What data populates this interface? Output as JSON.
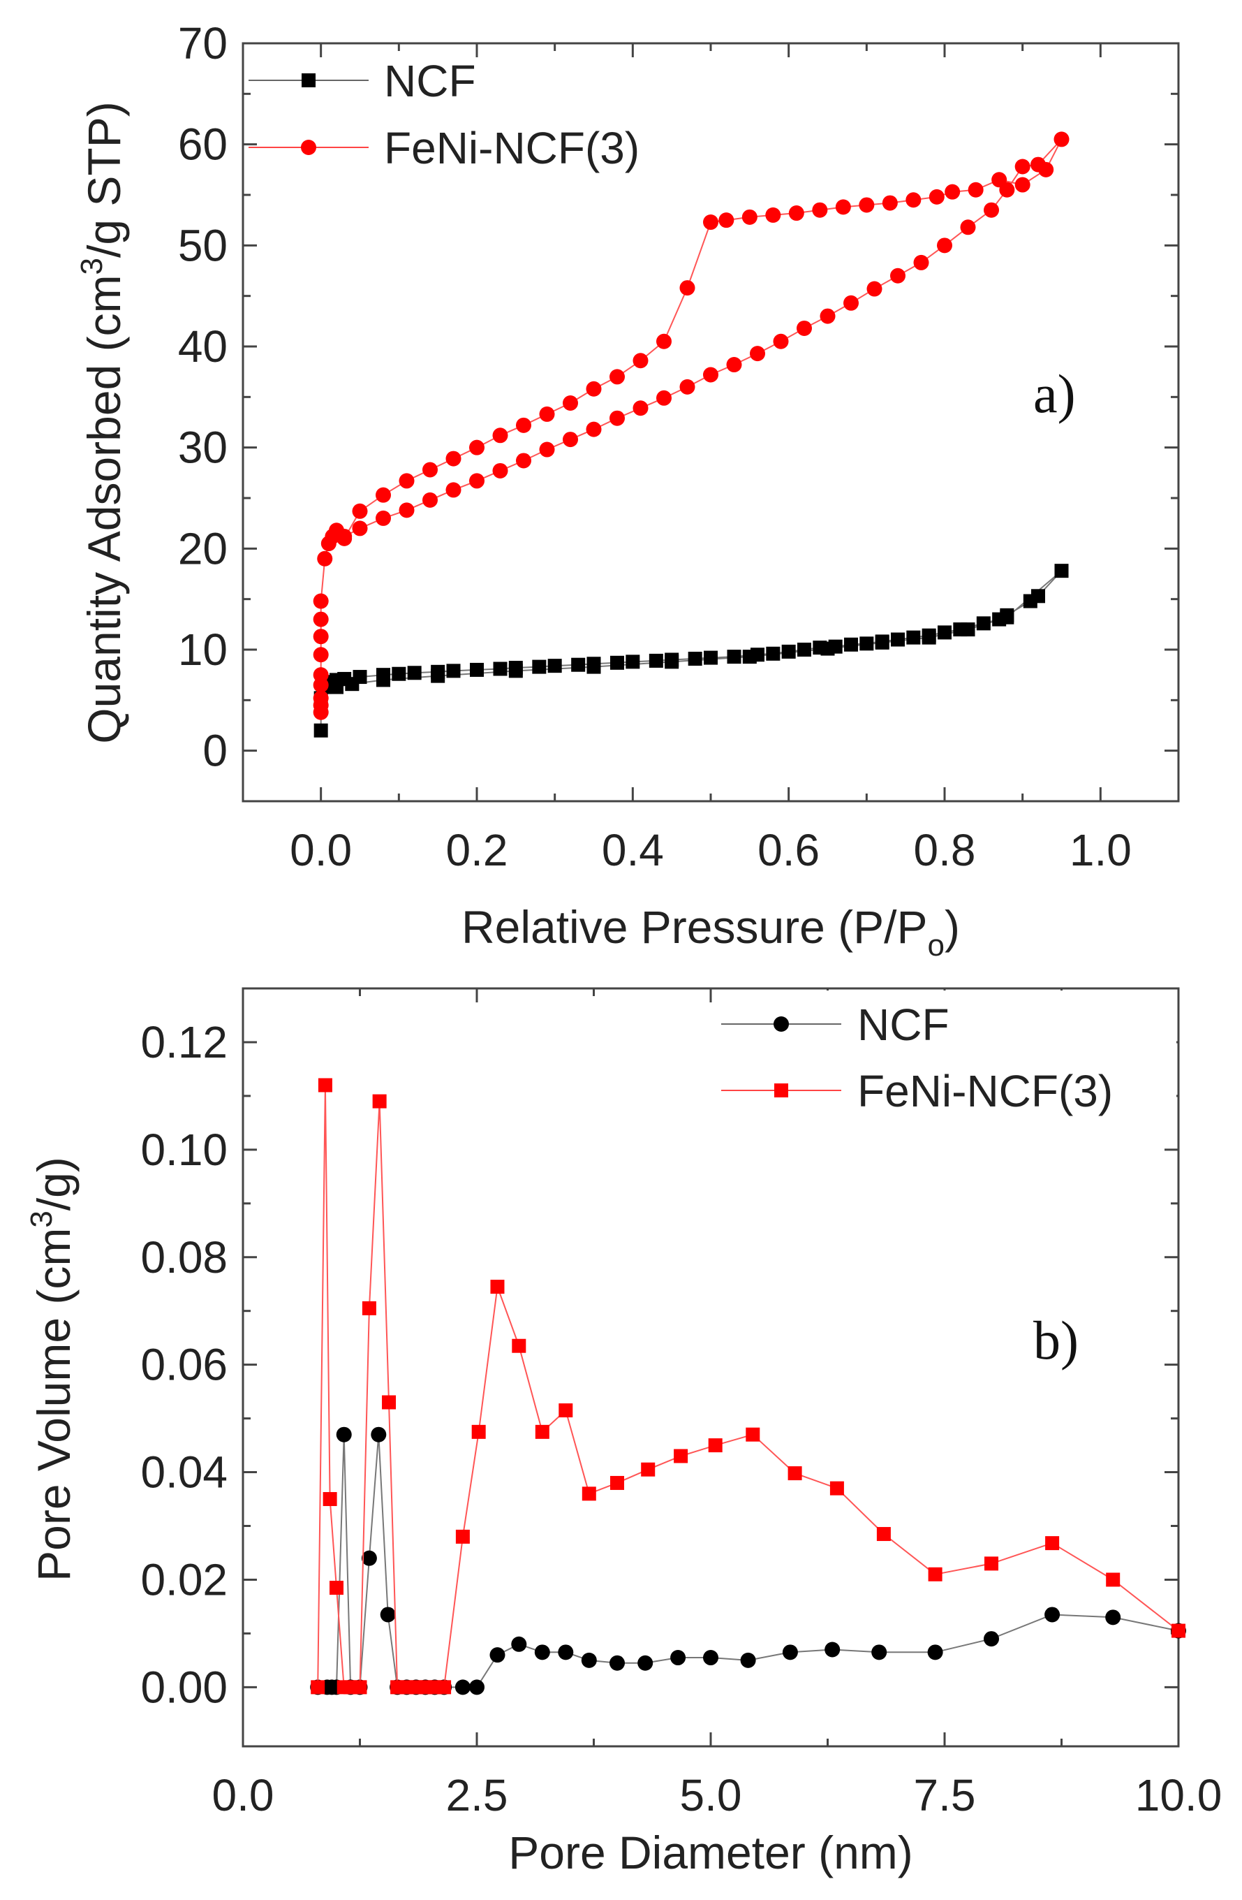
{
  "chart_data": [
    {
      "type": "scatter",
      "panel_label": "a)",
      "xlabel_main": "Relative Pressure (P/P",
      "xlabel_sub": "o",
      "xlabel_end": ")",
      "ylabel_main": "Quantity Adsorbed (cm",
      "ylabel_sup": "3",
      "ylabel_end": "/g STP)",
      "xlim": [
        -0.1,
        1.1
      ],
      "ylim": [
        -5,
        70
      ],
      "xticks": [
        {
          "value": 0.0,
          "label": "0.0"
        },
        {
          "value": 0.2,
          "label": "0.2"
        },
        {
          "value": 0.4,
          "label": "0.4"
        },
        {
          "value": 0.6,
          "label": "0.6"
        },
        {
          "value": 0.8,
          "label": "0.8"
        },
        {
          "value": 1.0,
          "label": "1.0"
        }
      ],
      "yticks": [
        {
          "value": 0,
          "label": "0"
        },
        {
          "value": 10,
          "label": "10"
        },
        {
          "value": 20,
          "label": "20"
        },
        {
          "value": 30,
          "label": "30"
        },
        {
          "value": 40,
          "label": "40"
        },
        {
          "value": 50,
          "label": "50"
        },
        {
          "value": 60,
          "label": "60"
        },
        {
          "value": 70,
          "label": "70"
        }
      ],
      "legend_position": "top-left",
      "series": [
        {
          "name": "NCF",
          "color": "#000000",
          "marker": "square",
          "x": [
            0.0,
            0.0,
            0.005,
            0.01,
            0.02,
            0.03,
            0.05,
            0.08,
            0.1,
            0.12,
            0.15,
            0.17,
            0.2,
            0.23,
            0.25,
            0.28,
            0.3,
            0.33,
            0.35,
            0.38,
            0.4,
            0.43,
            0.45,
            0.48,
            0.5,
            0.53,
            0.56,
            0.58,
            0.6,
            0.62,
            0.64,
            0.66,
            0.68,
            0.7,
            0.72,
            0.74,
            0.76,
            0.78,
            0.8,
            0.82,
            0.85,
            0.87,
            0.88,
            0.91,
            0.92,
            0.95,
            0.88,
            0.83,
            0.78,
            0.72,
            0.65,
            0.55,
            0.45,
            0.35,
            0.25,
            0.15,
            0.08,
            0.04,
            0.02
          ],
          "y": [
            2.0,
            5.2,
            6.3,
            6.8,
            7.0,
            7.1,
            7.3,
            7.5,
            7.6,
            7.7,
            7.8,
            7.9,
            8.0,
            8.1,
            8.2,
            8.3,
            8.4,
            8.5,
            8.6,
            8.7,
            8.8,
            8.9,
            9.0,
            9.1,
            9.2,
            9.3,
            9.5,
            9.6,
            9.8,
            10.0,
            10.2,
            10.3,
            10.5,
            10.6,
            10.8,
            11.0,
            11.2,
            11.4,
            11.7,
            12.0,
            12.6,
            13.0,
            13.4,
            14.8,
            15.3,
            17.8,
            13.2,
            12.0,
            11.2,
            10.7,
            10.1,
            9.3,
            8.8,
            8.3,
            7.9,
            7.4,
            7.0,
            6.6,
            6.3
          ]
        },
        {
          "name": "FeNi-NCF(3)",
          "color": "#ff0000",
          "marker": "circle",
          "x": [
            0.0,
            0.0,
            0.0,
            0.0,
            0.0,
            0.0,
            0.0,
            0.0,
            0.0,
            0.005,
            0.01,
            0.015,
            0.02,
            0.03,
            0.05,
            0.08,
            0.11,
            0.14,
            0.17,
            0.2,
            0.23,
            0.26,
            0.29,
            0.32,
            0.35,
            0.38,
            0.41,
            0.44,
            0.47,
            0.5,
            0.53,
            0.56,
            0.59,
            0.62,
            0.65,
            0.68,
            0.71,
            0.74,
            0.77,
            0.8,
            0.83,
            0.86,
            0.88,
            0.9,
            0.92,
            0.95,
            0.93,
            0.9,
            0.87,
            0.84,
            0.81,
            0.79,
            0.76,
            0.73,
            0.7,
            0.67,
            0.64,
            0.61,
            0.58,
            0.55,
            0.52,
            0.5,
            0.47,
            0.44,
            0.41,
            0.38,
            0.35,
            0.32,
            0.29,
            0.26,
            0.23,
            0.2,
            0.17,
            0.14,
            0.11,
            0.08,
            0.05,
            0.03
          ],
          "y": [
            3.8,
            4.5,
            5.2,
            6.5,
            7.5,
            9.5,
            11.3,
            13.0,
            14.8,
            19.0,
            20.5,
            21.2,
            21.8,
            21.2,
            22.0,
            23.0,
            23.8,
            24.8,
            25.8,
            26.7,
            27.7,
            28.7,
            29.8,
            30.8,
            31.8,
            32.9,
            33.9,
            34.9,
            36.0,
            37.2,
            38.2,
            39.3,
            40.5,
            41.8,
            43.0,
            44.3,
            45.7,
            47.0,
            48.3,
            50.0,
            51.8,
            53.5,
            55.5,
            57.8,
            58.0,
            60.5,
            57.5,
            56.0,
            56.5,
            55.5,
            55.3,
            54.8,
            54.5,
            54.2,
            54.0,
            53.8,
            53.5,
            53.2,
            53.0,
            52.8,
            52.5,
            52.3,
            45.8,
            40.5,
            38.6,
            37.0,
            35.8,
            34.4,
            33.3,
            32.2,
            31.2,
            30.0,
            28.9,
            27.8,
            26.7,
            25.3,
            23.7,
            21.0
          ]
        }
      ]
    },
    {
      "type": "line",
      "panel_label": "b)",
      "xlabel": "Pore Diameter (nm)",
      "ylabel_main": "Pore Volume (cm",
      "ylabel_sup": "3",
      "ylabel_end": "/g)",
      "xlim": [
        0.0,
        10.0
      ],
      "ylim": [
        -0.011,
        0.13
      ],
      "xticks": [
        {
          "value": 0.0,
          "label": "0.0"
        },
        {
          "value": 2.5,
          "label": "2.5"
        },
        {
          "value": 5.0,
          "label": "5.0"
        },
        {
          "value": 7.5,
          "label": "7.5"
        },
        {
          "value": 10.0,
          "label": "10.0"
        }
      ],
      "yticks": [
        {
          "value": 0.0,
          "label": "0.00"
        },
        {
          "value": 0.02,
          "label": "0.02"
        },
        {
          "value": 0.04,
          "label": "0.04"
        },
        {
          "value": 0.06,
          "label": "0.06"
        },
        {
          "value": 0.08,
          "label": "0.08"
        },
        {
          "value": 0.1,
          "label": "0.10"
        },
        {
          "value": 0.12,
          "label": "0.12"
        }
      ],
      "legend_position": "top-right",
      "series": [
        {
          "name": "NCF",
          "color": "#000000",
          "marker": "circle",
          "x": [
            0.8,
            0.9,
            0.95,
            1.0,
            1.08,
            1.15,
            1.25,
            1.35,
            1.45,
            1.55,
            1.65,
            1.75,
            1.85,
            1.95,
            2.05,
            2.15,
            2.35,
            2.5,
            2.72,
            2.95,
            3.2,
            3.45,
            3.7,
            4.0,
            4.3,
            4.65,
            5.0,
            5.4,
            5.85,
            6.3,
            6.8,
            7.4,
            8.0,
            8.65,
            9.3,
            10.0
          ],
          "y": [
            0.0,
            0.0,
            0.0,
            0.0,
            0.047,
            0.0,
            0.0,
            0.024,
            0.047,
            0.0135,
            0.0,
            0.0,
            0.0,
            0.0,
            0.0,
            0.0,
            0.0,
            0.0,
            0.006,
            0.008,
            0.0065,
            0.0065,
            0.005,
            0.0045,
            0.0045,
            0.0055,
            0.0055,
            0.005,
            0.0065,
            0.007,
            0.0065,
            0.0065,
            0.009,
            0.0135,
            0.013,
            0.0105
          ]
        },
        {
          "name": "FeNi-NCF(3)",
          "color": "#ff0000",
          "marker": "square",
          "x": [
            0.8,
            0.88,
            0.93,
            1.0,
            1.08,
            1.15,
            1.25,
            1.35,
            1.46,
            1.56,
            1.65,
            1.75,
            1.85,
            1.95,
            2.05,
            2.15,
            2.35,
            2.52,
            2.72,
            2.95,
            3.2,
            3.45,
            3.7,
            4.0,
            4.33,
            4.68,
            5.05,
            5.45,
            5.9,
            6.35,
            6.85,
            7.4,
            8.0,
            8.65,
            9.3,
            10.0
          ],
          "y": [
            0.0,
            0.112,
            0.035,
            0.0185,
            0.0,
            0.0,
            0.0,
            0.0705,
            0.109,
            0.053,
            0.0,
            0.0,
            0.0,
            0.0,
            0.0,
            0.0,
            0.028,
            0.0475,
            0.0745,
            0.0635,
            0.0475,
            0.0515,
            0.036,
            0.038,
            0.0405,
            0.043,
            0.045,
            0.047,
            0.0398,
            0.037,
            0.0285,
            0.021,
            0.023,
            0.0268,
            0.02,
            0.0105
          ]
        }
      ]
    }
  ]
}
